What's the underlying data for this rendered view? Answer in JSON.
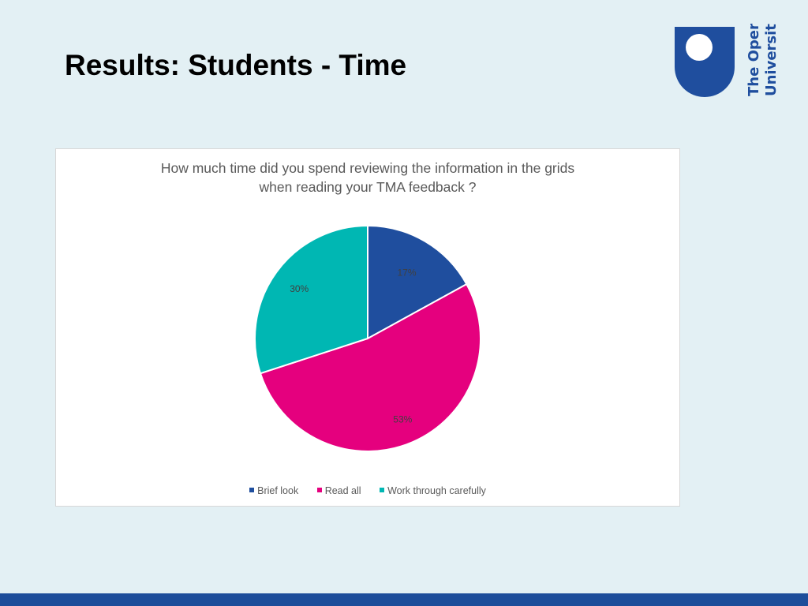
{
  "slide": {
    "title": "Results: Students - Time"
  },
  "logo": {
    "line1": "The Open",
    "line2": "University",
    "color": "#1f4e9e"
  },
  "chart_data": {
    "type": "pie",
    "title_lines": [
      "How much time did you spend reviewing the information in the grids",
      "when reading your TMA feedback ?"
    ],
    "categories": [
      "Brief look",
      "Read all",
      "Work through carefully"
    ],
    "values": [
      17,
      53,
      30
    ],
    "labels": [
      "17%",
      "53%",
      "30%"
    ],
    "colors": [
      "#1f4e9e",
      "#e5007e",
      "#00b7b3"
    ],
    "legend_position": "bottom"
  }
}
